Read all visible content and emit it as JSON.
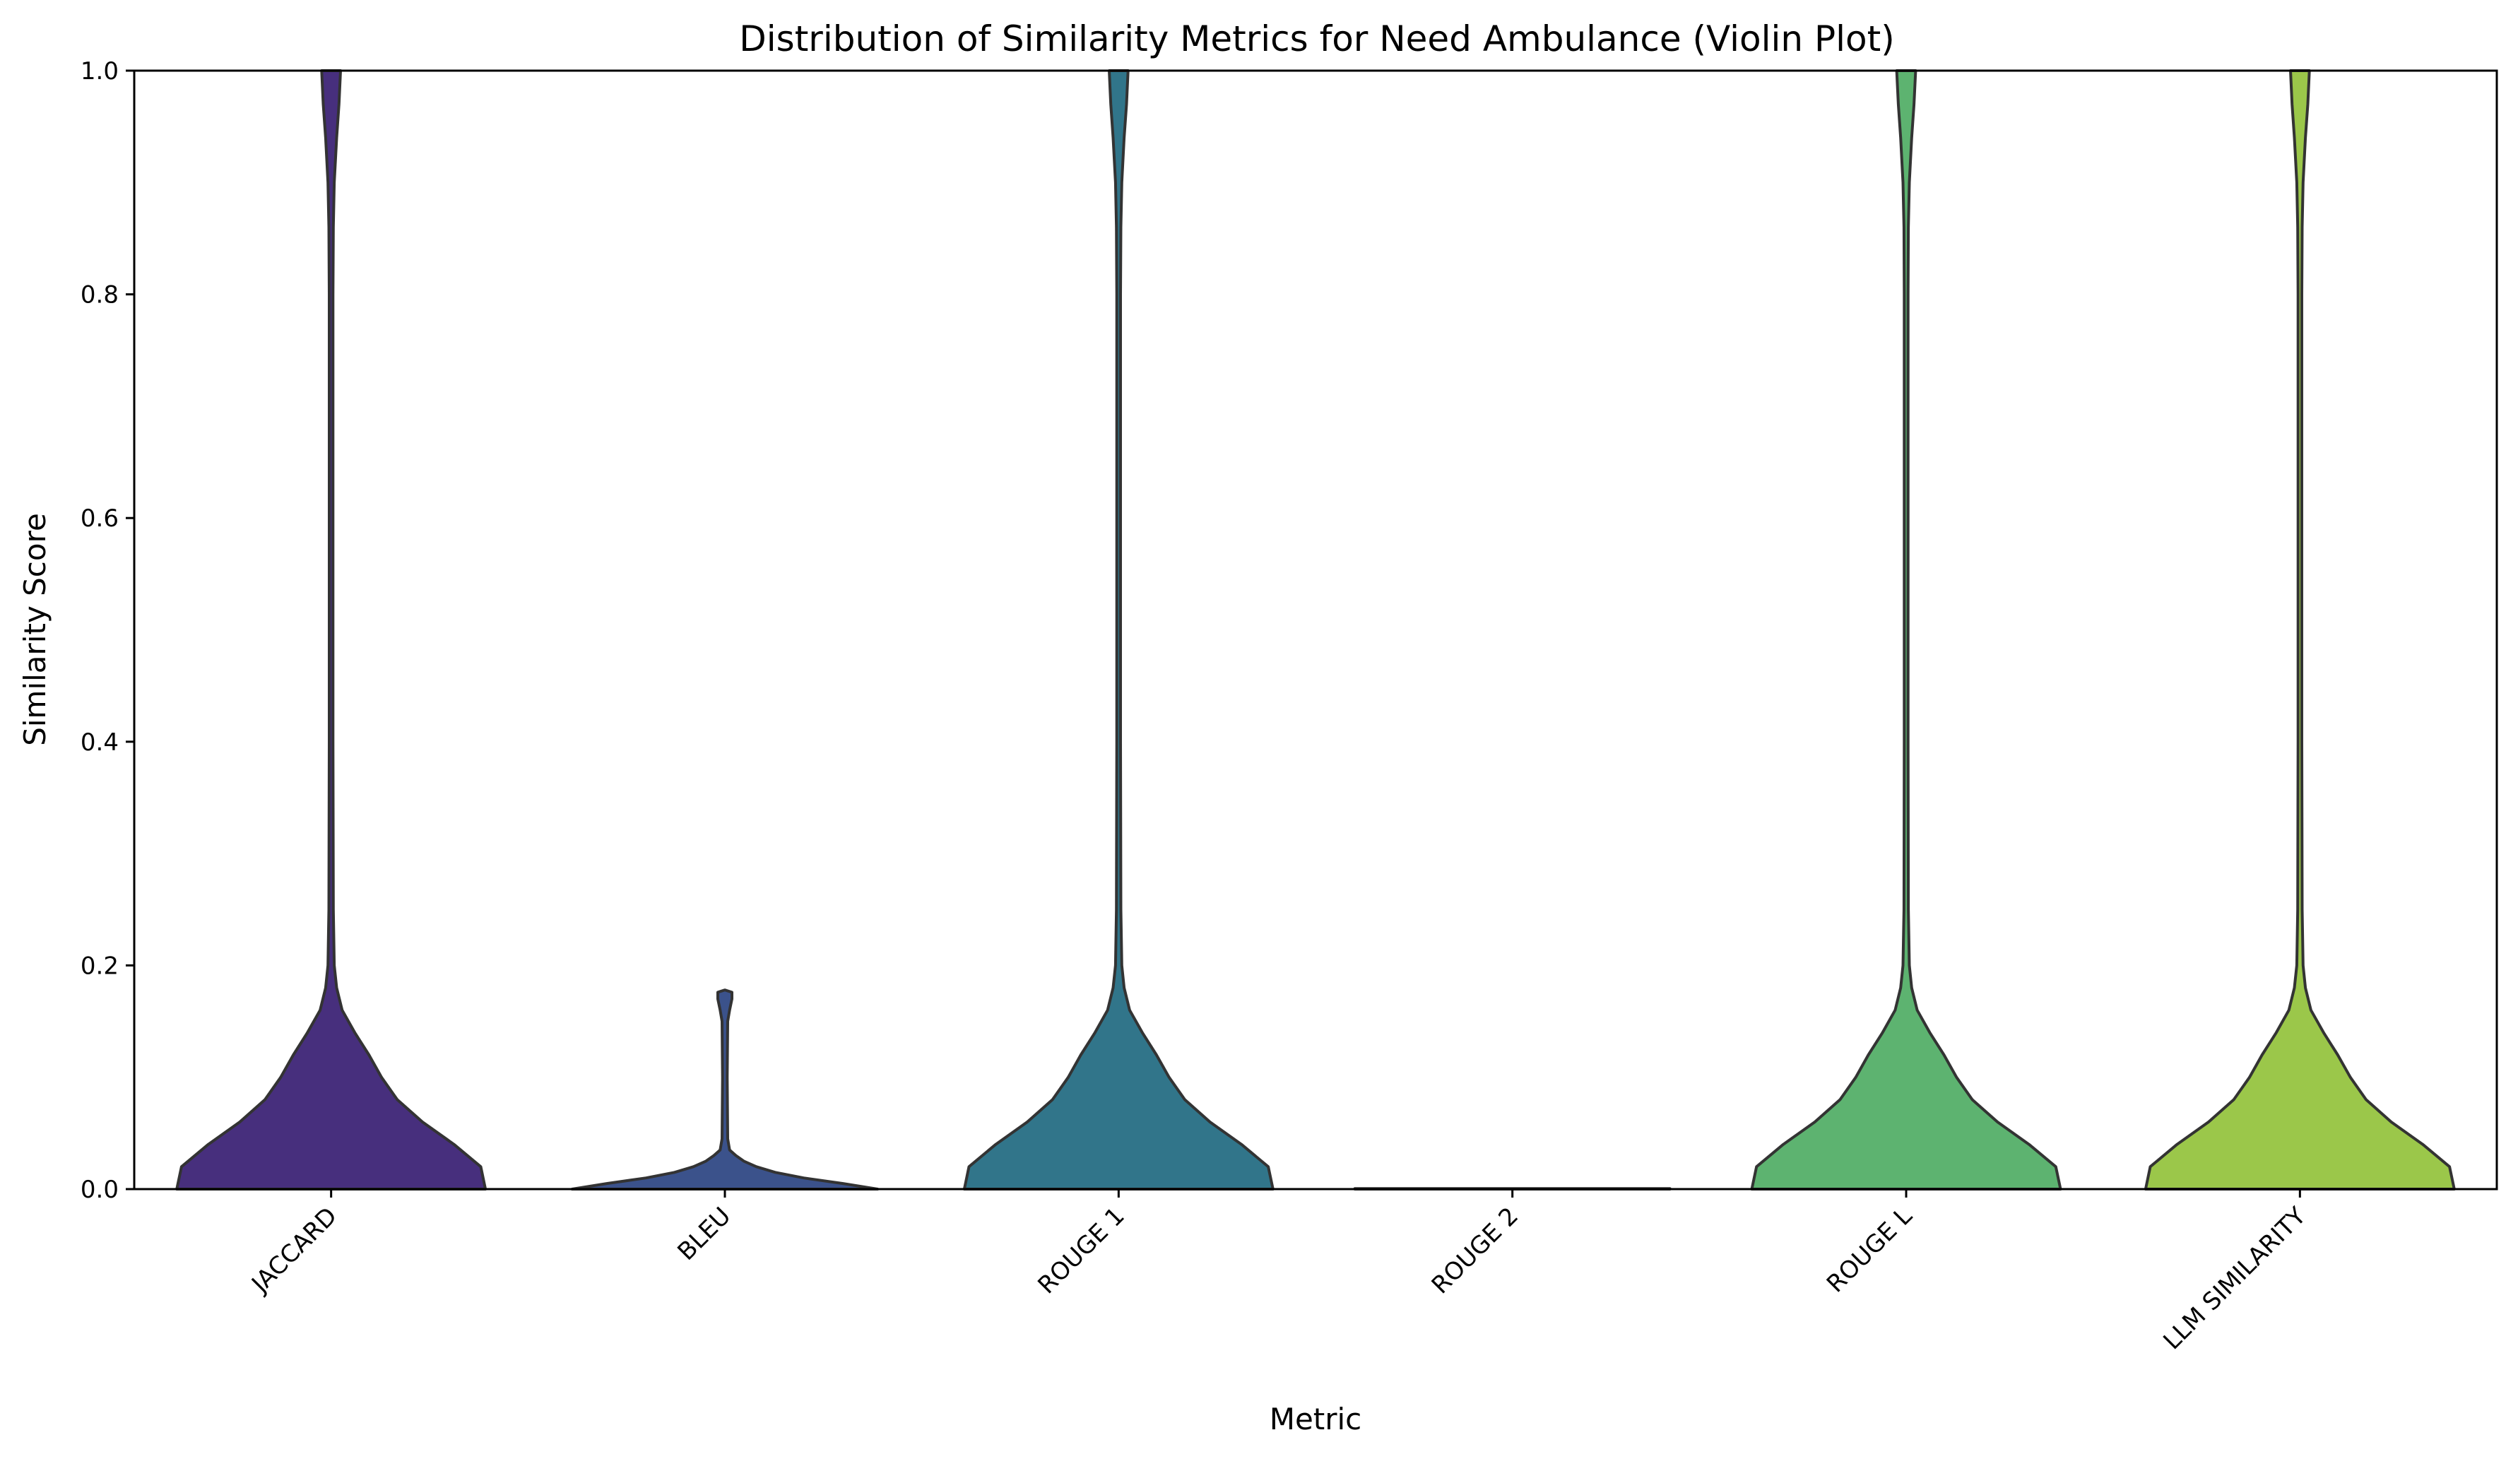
{
  "chart_data": {
    "type": "violin",
    "title": "Distribution of Similarity Metrics for Need Ambulance (Violin Plot)",
    "xlabel": "Metric",
    "ylabel": "Similarity Score",
    "ylim": [
      0,
      1.0
    ],
    "yticks": [
      "0.0",
      "0.2",
      "0.4",
      "0.6",
      "0.8",
      "1.0"
    ],
    "ytick_values": [
      0.0,
      0.2,
      0.4,
      0.6,
      0.8,
      1.0
    ],
    "grid": false,
    "legend": "none",
    "categories": [
      "JACCARD",
      "BLEU",
      "ROUGE 1",
      "ROUGE 2",
      "ROUGE L",
      "LLM SIMILARITY"
    ],
    "colors": [
      "#472f7d",
      "#3b528b",
      "#31758a",
      "#21918c",
      "#5db370",
      "#9bc74a"
    ],
    "series": [
      {
        "category": "JACCARD",
        "density": [
          [
            0.0,
            0.98
          ],
          [
            0.02,
            0.95
          ],
          [
            0.04,
            0.78
          ],
          [
            0.06,
            0.58
          ],
          [
            0.08,
            0.42
          ],
          [
            0.1,
            0.32
          ],
          [
            0.12,
            0.24
          ],
          [
            0.14,
            0.15
          ],
          [
            0.16,
            0.07
          ],
          [
            0.18,
            0.035
          ],
          [
            0.2,
            0.02
          ],
          [
            0.25,
            0.014
          ],
          [
            0.4,
            0.012
          ],
          [
            0.6,
            0.012
          ],
          [
            0.8,
            0.012
          ],
          [
            0.86,
            0.014
          ],
          [
            0.9,
            0.02
          ],
          [
            0.94,
            0.035
          ],
          [
            0.97,
            0.05
          ],
          [
            1.0,
            0.06
          ]
        ]
      },
      {
        "category": "BLEU",
        "density": [
          [
            0.0,
            0.97
          ],
          [
            0.005,
            0.75
          ],
          [
            0.01,
            0.5
          ],
          [
            0.015,
            0.32
          ],
          [
            0.02,
            0.2
          ],
          [
            0.025,
            0.12
          ],
          [
            0.03,
            0.07
          ],
          [
            0.035,
            0.03
          ],
          [
            0.045,
            0.018
          ],
          [
            0.1,
            0.015
          ],
          [
            0.15,
            0.018
          ],
          [
            0.16,
            0.03
          ],
          [
            0.17,
            0.045
          ],
          [
            0.176,
            0.045
          ],
          [
            0.178,
            0.0
          ]
        ]
      },
      {
        "category": "ROUGE 1",
        "density": [
          [
            0.0,
            0.98
          ],
          [
            0.02,
            0.95
          ],
          [
            0.04,
            0.78
          ],
          [
            0.06,
            0.58
          ],
          [
            0.08,
            0.42
          ],
          [
            0.1,
            0.32
          ],
          [
            0.12,
            0.24
          ],
          [
            0.14,
            0.15
          ],
          [
            0.16,
            0.07
          ],
          [
            0.18,
            0.035
          ],
          [
            0.2,
            0.02
          ],
          [
            0.25,
            0.014
          ],
          [
            0.4,
            0.012
          ],
          [
            0.6,
            0.012
          ],
          [
            0.8,
            0.012
          ],
          [
            0.86,
            0.014
          ],
          [
            0.9,
            0.02
          ],
          [
            0.94,
            0.035
          ],
          [
            0.97,
            0.05
          ],
          [
            1.0,
            0.06
          ]
        ]
      },
      {
        "category": "ROUGE 2",
        "density": [
          [
            0.0,
            1.0
          ],
          [
            0.0005,
            1.0
          ]
        ]
      },
      {
        "category": "ROUGE L",
        "density": [
          [
            0.0,
            0.98
          ],
          [
            0.02,
            0.95
          ],
          [
            0.04,
            0.78
          ],
          [
            0.06,
            0.58
          ],
          [
            0.08,
            0.42
          ],
          [
            0.1,
            0.32
          ],
          [
            0.12,
            0.24
          ],
          [
            0.14,
            0.15
          ],
          [
            0.16,
            0.07
          ],
          [
            0.18,
            0.035
          ],
          [
            0.2,
            0.02
          ],
          [
            0.25,
            0.014
          ],
          [
            0.4,
            0.012
          ],
          [
            0.6,
            0.012
          ],
          [
            0.8,
            0.012
          ],
          [
            0.86,
            0.014
          ],
          [
            0.9,
            0.02
          ],
          [
            0.94,
            0.035
          ],
          [
            0.97,
            0.05
          ],
          [
            1.0,
            0.06
          ]
        ]
      },
      {
        "category": "LLM SIMILARITY",
        "density": [
          [
            0.0,
            0.98
          ],
          [
            0.02,
            0.95
          ],
          [
            0.04,
            0.78
          ],
          [
            0.06,
            0.58
          ],
          [
            0.08,
            0.42
          ],
          [
            0.1,
            0.32
          ],
          [
            0.12,
            0.24
          ],
          [
            0.14,
            0.15
          ],
          [
            0.16,
            0.07
          ],
          [
            0.18,
            0.035
          ],
          [
            0.2,
            0.02
          ],
          [
            0.25,
            0.014
          ],
          [
            0.4,
            0.012
          ],
          [
            0.6,
            0.012
          ],
          [
            0.8,
            0.012
          ],
          [
            0.86,
            0.014
          ],
          [
            0.9,
            0.02
          ],
          [
            0.94,
            0.035
          ],
          [
            0.97,
            0.05
          ],
          [
            1.0,
            0.06
          ]
        ]
      }
    ]
  }
}
